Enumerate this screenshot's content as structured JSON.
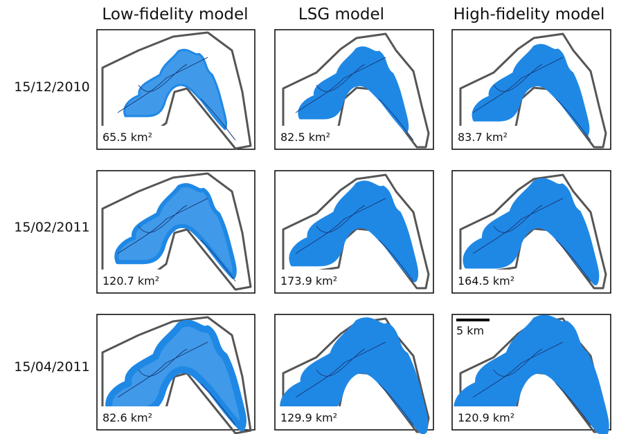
{
  "columns": [
    "Low-fidelity model",
    "LSG model",
    "High-fidelity model"
  ],
  "rows": [
    {
      "date": "15/12/2010",
      "areas": [
        "65.5 km²",
        "82.5 km²",
        "83.7 km²"
      ]
    },
    {
      "date": "15/02/2011",
      "areas": [
        "120.7 km²",
        "173.9 km²",
        "164.5 km²"
      ]
    },
    {
      "date": "15/04/2011",
      "areas": [
        "82.6 km²",
        "129.9 km²",
        "120.9 km²"
      ]
    }
  ],
  "scale_bar": "5 km"
}
